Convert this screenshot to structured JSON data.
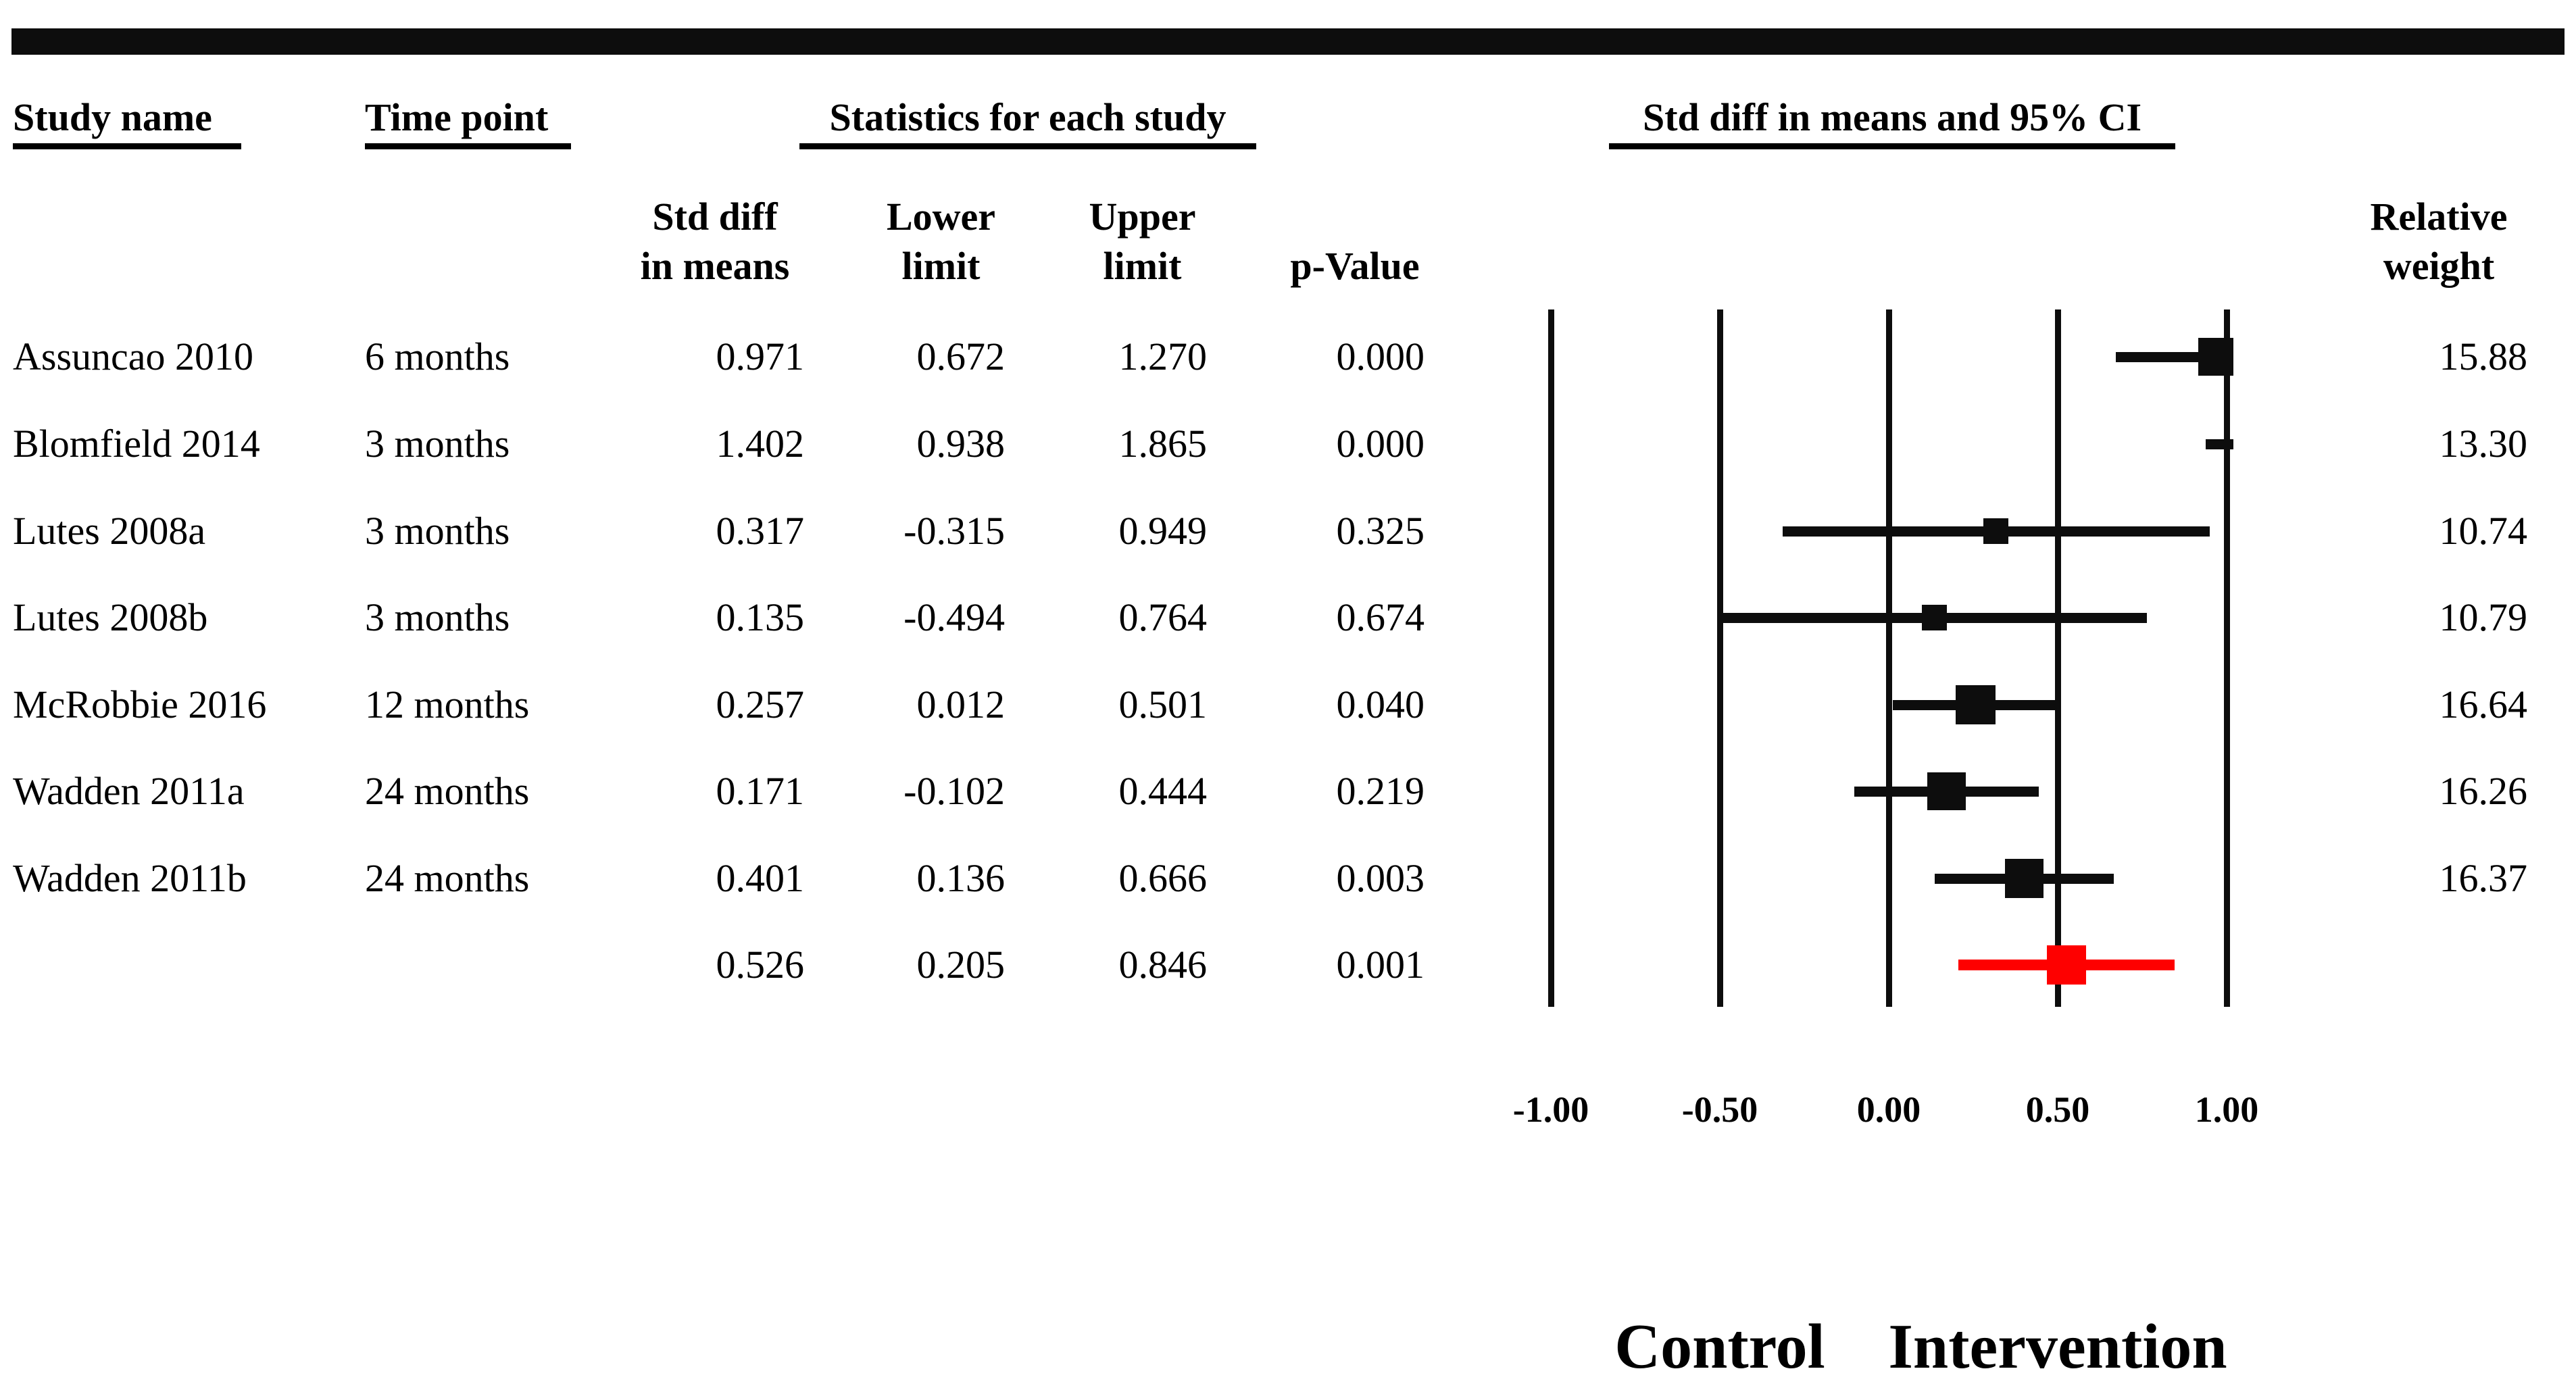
{
  "header": {
    "study_name": "Study name",
    "time_point": "Time point",
    "statistics_group": "Statistics for each study",
    "ci_group": "Std diff in means and 95% CI",
    "sub": {
      "std_diff_line1": "Std diff",
      "std_diff_line2": "in means",
      "lower_line1": "Lower",
      "lower_line2": "limit",
      "upper_line1": "Upper",
      "upper_line2": "limit",
      "p_value": "p-Value",
      "relative_line1": "Relative",
      "relative_line2": "weight"
    }
  },
  "rows": [
    {
      "name": "Assuncao 2010",
      "time": "6 months",
      "std": "0.971",
      "lower": "0.672",
      "upper": "1.270",
      "p": "0.000",
      "weight": "15.88"
    },
    {
      "name": "Blomfield 2014",
      "time": "3 months",
      "std": "1.402",
      "lower": "0.938",
      "upper": "1.865",
      "p": "0.000",
      "weight": "13.30"
    },
    {
      "name": "Lutes 2008a",
      "time": "3 months",
      "std": "0.317",
      "lower": "-0.315",
      "upper": "0.949",
      "p": "0.325",
      "weight": "10.74"
    },
    {
      "name": "Lutes 2008b",
      "time": "3 months",
      "std": "0.135",
      "lower": "-0.494",
      "upper": "0.764",
      "p": "0.674",
      "weight": "10.79"
    },
    {
      "name": "McRobbie 2016",
      "time": "12 months",
      "std": "0.257",
      "lower": "0.012",
      "upper": "0.501",
      "p": "0.040",
      "weight": "16.64"
    },
    {
      "name": "Wadden 2011a",
      "time": "24 months",
      "std": "0.171",
      "lower": "-0.102",
      "upper": "0.444",
      "p": "0.219",
      "weight": "16.26"
    },
    {
      "name": "Wadden 2011b",
      "time": "24 months",
      "std": "0.401",
      "lower": "0.136",
      "upper": "0.666",
      "p": "0.003",
      "weight": "16.37"
    }
  ],
  "summary_row": {
    "std": "0.526",
    "lower": "0.205",
    "upper": "0.846",
    "p": "0.001"
  },
  "chart_data": {
    "type": "forest",
    "title": "Std diff in means and 95% CI",
    "xlim": [
      -1.0,
      1.0
    ],
    "x_ticks": [
      -1.0,
      -0.5,
      0.0,
      0.5,
      1.0
    ],
    "tick_labels": [
      "-1.00",
      "-0.50",
      "0.00",
      "0.50",
      "1.00"
    ],
    "grid": true,
    "studies": [
      {
        "name": "Assuncao 2010",
        "time": "6 months",
        "mean": 0.971,
        "lower": 0.672,
        "upper": 1.27,
        "p": 0.0,
        "weight": 15.88
      },
      {
        "name": "Blomfield 2014",
        "time": "3 months",
        "mean": 1.402,
        "lower": 0.938,
        "upper": 1.865,
        "p": 0.0,
        "weight": 13.3
      },
      {
        "name": "Lutes 2008a",
        "time": "3 months",
        "mean": 0.317,
        "lower": -0.315,
        "upper": 0.949,
        "p": 0.325,
        "weight": 10.74
      },
      {
        "name": "Lutes 2008b",
        "time": "3 months",
        "mean": 0.135,
        "lower": -0.494,
        "upper": 0.764,
        "p": 0.674,
        "weight": 10.79
      },
      {
        "name": "McRobbie 2016",
        "time": "12 months",
        "mean": 0.257,
        "lower": 0.012,
        "upper": 0.501,
        "p": 0.04,
        "weight": 16.64
      },
      {
        "name": "Wadden 2011a",
        "time": "24 months",
        "mean": 0.171,
        "lower": -0.102,
        "upper": 0.444,
        "p": 0.219,
        "weight": 16.26
      },
      {
        "name": "Wadden 2011b",
        "time": "24 months",
        "mean": 0.401,
        "lower": 0.136,
        "upper": 0.666,
        "p": 0.003,
        "weight": 16.37
      }
    ],
    "summary": {
      "mean": 0.526,
      "lower": 0.205,
      "upper": 0.846,
      "p": 0.001
    },
    "colors": {
      "study_marker": "#0d0d0d",
      "summary_marker": "#fe0000",
      "gridline": "#0d0d0d"
    },
    "footer_labels": {
      "left": "Control",
      "right": "Intervention"
    }
  }
}
